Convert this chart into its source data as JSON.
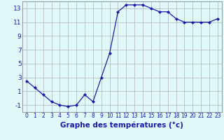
{
  "hours": [
    0,
    1,
    2,
    3,
    4,
    5,
    6,
    7,
    8,
    9,
    10,
    11,
    12,
    13,
    14,
    15,
    16,
    17,
    18,
    19,
    20,
    21,
    22,
    23
  ],
  "temps": [
    2.5,
    1.5,
    0.5,
    -0.5,
    -1.0,
    -1.2,
    -1.0,
    0.5,
    -0.5,
    3.0,
    6.5,
    12.5,
    13.5,
    13.5,
    13.5,
    13.0,
    12.5,
    12.5,
    11.5,
    11.0,
    11.0,
    11.0,
    11.0,
    11.5
  ],
  "line_color": "#1a1aaa",
  "marker": "D",
  "marker_size": 2,
  "bg_color": "#e0f8f8",
  "grid_color": "#b0b0c0",
  "xlabel": "Graphe des températures (°c)",
  "ylim": [
    -2,
    14
  ],
  "xlim": [
    -0.5,
    23.5
  ],
  "yticks": [
    -1,
    1,
    3,
    5,
    7,
    9,
    11,
    13
  ],
  "xtick_fontsize": 5.5,
  "ytick_fontsize": 6.5,
  "xlabel_fontsize": 7.5,
  "linewidth": 0.9
}
